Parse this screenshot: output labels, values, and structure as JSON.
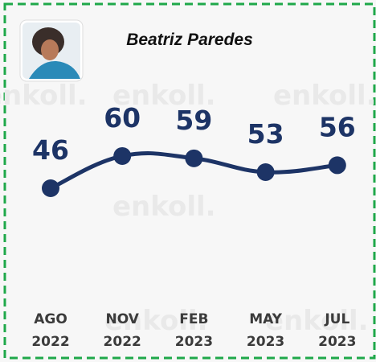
{
  "chart_data": {
    "type": "line",
    "title": "Beatriz Paredes",
    "categories": [
      "AGO 2022",
      "NOV 2022",
      "FEB 2023",
      "MAY 2023",
      "JUL 2023"
    ],
    "values": [
      46,
      60,
      59,
      53,
      56
    ],
    "color": "#1d3466",
    "watermark": "enkoll."
  }
}
